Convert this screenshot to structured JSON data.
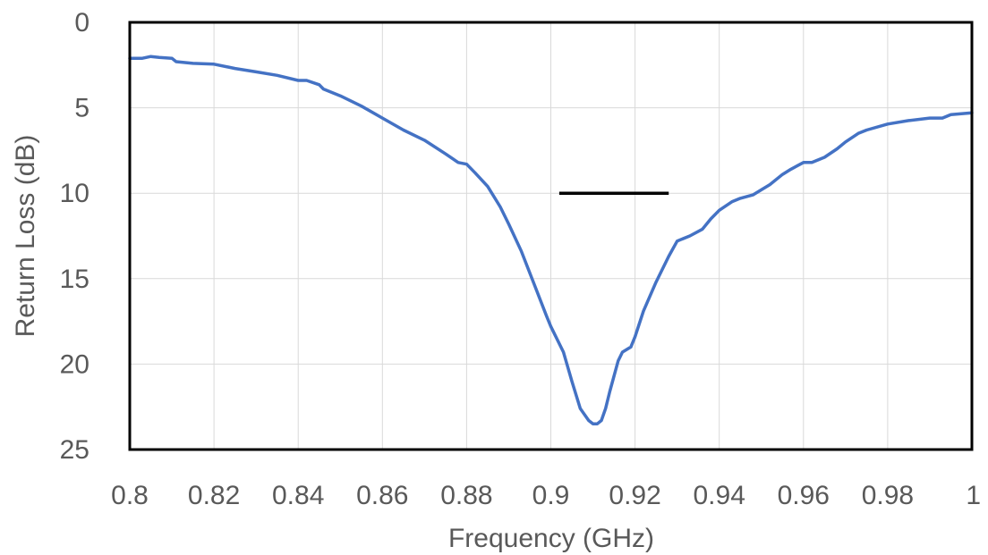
{
  "chart_data": {
    "type": "line",
    "title": "",
    "xlabel": "Frequency (GHz)",
    "ylabel": "Return Loss (dB)",
    "xlim": [
      0.8,
      1.0
    ],
    "ylim": [
      0,
      25
    ],
    "y_inverted": true,
    "grid": true,
    "legend": "none",
    "x_ticks": [
      0.8,
      0.82,
      0.84,
      0.86,
      0.88,
      0.9,
      0.92,
      0.94,
      0.96,
      0.98,
      1.0
    ],
    "x_tick_labels": [
      "0.8",
      "0.82",
      "0.84",
      "0.86",
      "0.88",
      "0.9",
      "0.92",
      "0.94",
      "0.96",
      "0.98",
      "1"
    ],
    "y_ticks": [
      0,
      5,
      10,
      15,
      20,
      25
    ],
    "y_tick_labels": [
      "0",
      "5",
      "10",
      "15",
      "20",
      "25"
    ],
    "colors": {
      "series": "#4472c4",
      "reference_line": "#000000",
      "grid": "#d9d9d9",
      "frame": "#000000",
      "text": "#595959"
    },
    "series": [
      {
        "x": [
          0.8,
          0.803,
          0.805,
          0.807,
          0.81,
          0.811,
          0.815,
          0.82,
          0.825,
          0.83,
          0.835,
          0.84,
          0.842,
          0.845,
          0.846,
          0.85,
          0.855,
          0.86,
          0.865,
          0.87,
          0.875,
          0.878,
          0.88,
          0.882,
          0.885,
          0.888,
          0.89,
          0.893,
          0.896,
          0.899,
          0.9,
          0.903,
          0.905,
          0.907,
          0.909,
          0.91,
          0.911,
          0.912,
          0.913,
          0.914,
          0.916,
          0.917,
          0.919,
          0.92,
          0.922,
          0.925,
          0.928,
          0.93,
          0.933,
          0.936,
          0.938,
          0.94,
          0.943,
          0.945,
          0.948,
          0.95,
          0.952,
          0.955,
          0.957,
          0.96,
          0.962,
          0.965,
          0.968,
          0.97,
          0.973,
          0.975,
          0.98,
          0.985,
          0.99,
          0.993,
          0.995,
          1.0
        ],
        "values": [
          2.1,
          2.1,
          2.0,
          2.05,
          2.1,
          2.3,
          2.4,
          2.45,
          2.7,
          2.9,
          3.1,
          3.4,
          3.4,
          3.65,
          3.9,
          4.3,
          4.9,
          5.6,
          6.3,
          6.9,
          7.7,
          8.2,
          8.3,
          8.8,
          9.6,
          10.8,
          11.8,
          13.4,
          15.3,
          17.2,
          17.8,
          19.3,
          21.0,
          22.6,
          23.3,
          23.5,
          23.5,
          23.3,
          22.6,
          21.6,
          19.8,
          19.3,
          19.0,
          18.4,
          16.9,
          15.2,
          13.7,
          12.8,
          12.5,
          12.1,
          11.5,
          11.0,
          10.5,
          10.3,
          10.1,
          9.8,
          9.5,
          8.9,
          8.6,
          8.2,
          8.2,
          7.9,
          7.4,
          7.0,
          6.5,
          6.3,
          5.95,
          5.75,
          5.6,
          5.6,
          5.4,
          5.3
        ]
      }
    ],
    "reference_line": {
      "x": [
        0.902,
        0.928
      ],
      "y": 10
    }
  }
}
